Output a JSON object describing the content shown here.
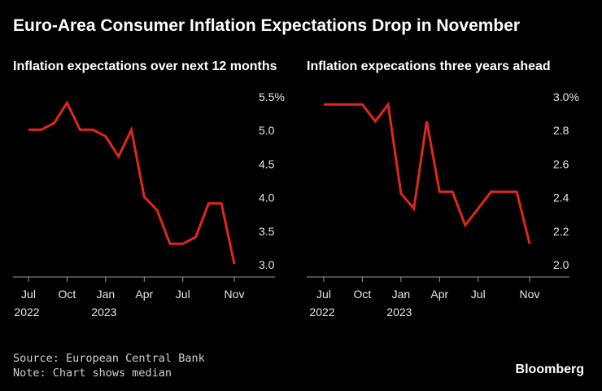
{
  "title": "Euro-Area Consumer Inflation Expectations Drop in November",
  "chart_data": [
    {
      "type": "line",
      "title": "Inflation expectations over next 12 months",
      "series": [
        {
          "name": "Median",
          "color": "#e0271b",
          "values": [
            5.0,
            5.0,
            5.1,
            5.4,
            5.0,
            5.0,
            4.9,
            4.6,
            5.0,
            4.0,
            3.8,
            3.3,
            3.3,
            3.4,
            3.9,
            3.9,
            3.0
          ]
        }
      ],
      "x_start_month_index": 0,
      "ylim": [
        3.0,
        5.5
      ],
      "yticks": [
        3.0,
        3.5,
        4.0,
        4.5,
        5.0,
        5.5
      ],
      "ytick_labels": [
        "3.0",
        "3.5",
        "4.0",
        "4.5",
        "5.0",
        "5.5%"
      ],
      "xticks": [
        {
          "month_index": 0,
          "label": "Jul",
          "year": "2022"
        },
        {
          "month_index": 3,
          "label": "Oct",
          "year": ""
        },
        {
          "month_index": 6,
          "label": "Jan",
          "year": "2023"
        },
        {
          "month_index": 9,
          "label": "Apr",
          "year": ""
        },
        {
          "month_index": 12,
          "label": "Jul",
          "year": ""
        },
        {
          "month_index": 16,
          "label": "Nov",
          "year": ""
        }
      ]
    },
    {
      "type": "line",
      "title": "Inflation expecations three years ahead",
      "series": [
        {
          "name": "Median",
          "color": "#e0271b",
          "values": [
            2.95,
            2.95,
            2.95,
            2.95,
            2.85,
            2.95,
            2.42,
            2.33,
            2.85,
            2.43,
            2.43,
            2.23,
            2.33,
            2.43,
            2.43,
            2.43,
            2.12
          ]
        }
      ],
      "x_start_month_index": 0,
      "ylim": [
        2.0,
        3.0
      ],
      "yticks": [
        2.0,
        2.2,
        2.4,
        2.6,
        2.8,
        3.0
      ],
      "ytick_labels": [
        "2.0",
        "2.2",
        "2.4",
        "2.6",
        "2.8",
        "3.0%"
      ],
      "xticks": [
        {
          "month_index": 0,
          "label": "Jul",
          "year": "2022"
        },
        {
          "month_index": 3,
          "label": "Oct",
          "year": ""
        },
        {
          "month_index": 6,
          "label": "Jan",
          "year": "2023"
        },
        {
          "month_index": 9,
          "label": "Apr",
          "year": ""
        },
        {
          "month_index": 12,
          "label": "Jul",
          "year": ""
        },
        {
          "month_index": 16,
          "label": "Nov",
          "year": ""
        }
      ]
    }
  ],
  "source": "Source: European Central Bank",
  "note": "Note: Chart shows median",
  "brand": "Bloomberg"
}
